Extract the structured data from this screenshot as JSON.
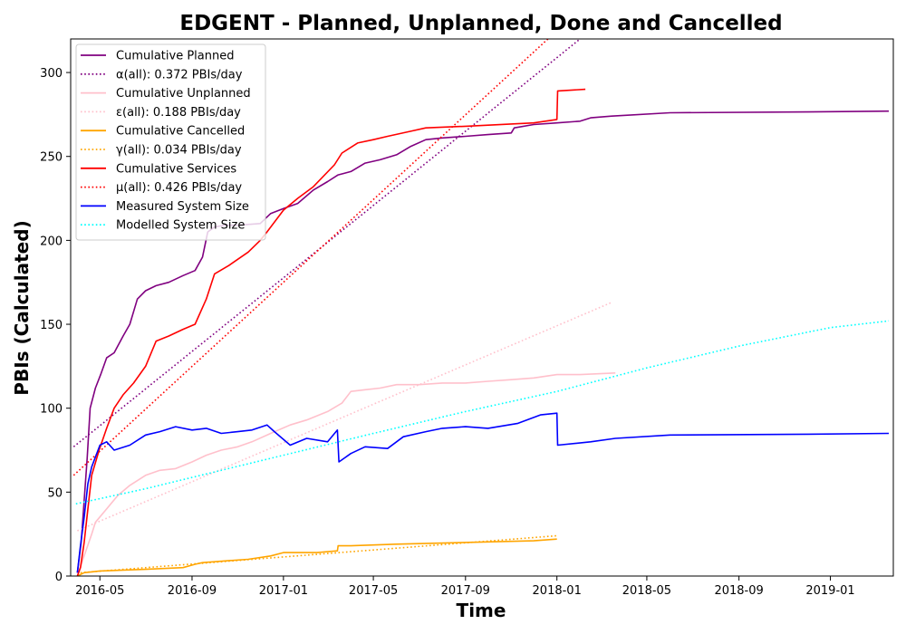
{
  "chart_data": {
    "type": "line",
    "title": "EDGENT - Planned, Unplanned, Done  and Cancelled",
    "xlabel": "Time",
    "ylabel": "PBIs (Calculated)",
    "xlim": [
      "2016-03-23",
      "2019-03-26"
    ],
    "ylim": [
      0,
      320
    ],
    "x_ticks": [
      "2016-05",
      "2016-09",
      "2017-01",
      "2017-05",
      "2017-09",
      "2018-01",
      "2018-05",
      "2018-09",
      "2019-01"
    ],
    "y_ticks": [
      0,
      50,
      100,
      150,
      200,
      250,
      300
    ],
    "grid": false,
    "legend_position": "top-left",
    "series": [
      {
        "name": "Cumulative Planned",
        "color": "#800080",
        "style": "solid",
        "points": [
          [
            "2016-04-01",
            2
          ],
          [
            "2016-04-06",
            20
          ],
          [
            "2016-04-10",
            45
          ],
          [
            "2016-04-14",
            70
          ],
          [
            "2016-04-18",
            100
          ],
          [
            "2016-04-25",
            112
          ],
          [
            "2016-05-02",
            120
          ],
          [
            "2016-05-10",
            130
          ],
          [
            "2016-05-20",
            133
          ],
          [
            "2016-06-01",
            143
          ],
          [
            "2016-06-10",
            150
          ],
          [
            "2016-06-20",
            165
          ],
          [
            "2016-07-01",
            170
          ],
          [
            "2016-07-15",
            173
          ],
          [
            "2016-08-01",
            175
          ],
          [
            "2016-08-20",
            179
          ],
          [
            "2016-09-05",
            182
          ],
          [
            "2016-09-15",
            190
          ],
          [
            "2016-09-22",
            205
          ],
          [
            "2016-10-01",
            208
          ],
          [
            "2016-10-15",
            209
          ],
          [
            "2016-11-01",
            209
          ],
          [
            "2016-12-01",
            210
          ],
          [
            "2016-12-15",
            216
          ],
          [
            "2017-01-01",
            219
          ],
          [
            "2017-01-20",
            222
          ],
          [
            "2017-02-10",
            230
          ],
          [
            "2017-03-01",
            235
          ],
          [
            "2017-03-15",
            239
          ],
          [
            "2017-04-01",
            241
          ],
          [
            "2017-04-20",
            246
          ],
          [
            "2017-05-10",
            248
          ],
          [
            "2017-06-01",
            251
          ],
          [
            "2017-06-20",
            256
          ],
          [
            "2017-07-10",
            260
          ],
          [
            "2017-08-01",
            261
          ],
          [
            "2017-09-01",
            262
          ],
          [
            "2017-10-01",
            263
          ],
          [
            "2017-11-01",
            264
          ],
          [
            "2017-11-05",
            267
          ],
          [
            "2017-12-01",
            269
          ],
          [
            "2018-01-01",
            270
          ],
          [
            "2018-02-01",
            271
          ],
          [
            "2018-02-15",
            273
          ],
          [
            "2018-03-15",
            274
          ],
          [
            "2018-06-01",
            276
          ],
          [
            "2018-12-01",
            276.5
          ],
          [
            "2019-03-20",
            277
          ]
        ]
      },
      {
        "name": "α(all): 0.372 PBIs/day",
        "color": "#800080",
        "style": "dotted",
        "points": [
          [
            "2016-03-27",
            77
          ],
          [
            "2018-02-01",
            320
          ]
        ]
      },
      {
        "name": "Cumulative Unplanned",
        "color": "#ffc0cb",
        "style": "solid",
        "points": [
          [
            "2016-04-01",
            0
          ],
          [
            "2016-04-10",
            12
          ],
          [
            "2016-04-20",
            25
          ],
          [
            "2016-04-25",
            32
          ],
          [
            "2016-05-10",
            40
          ],
          [
            "2016-05-25",
            48
          ],
          [
            "2016-06-10",
            54
          ],
          [
            "2016-07-01",
            60
          ],
          [
            "2016-07-20",
            63
          ],
          [
            "2016-08-10",
            64
          ],
          [
            "2016-09-01",
            68
          ],
          [
            "2016-09-20",
            72
          ],
          [
            "2016-10-10",
            75
          ],
          [
            "2016-11-01",
            77
          ],
          [
            "2016-11-20",
            80
          ],
          [
            "2016-12-15",
            85
          ],
          [
            "2017-01-10",
            90
          ],
          [
            "2017-02-01",
            93
          ],
          [
            "2017-03-01",
            98
          ],
          [
            "2017-03-20",
            103
          ],
          [
            "2017-04-01",
            110
          ],
          [
            "2017-04-20",
            111
          ],
          [
            "2017-05-10",
            112
          ],
          [
            "2017-06-01",
            114
          ],
          [
            "2017-07-01",
            114
          ],
          [
            "2017-08-01",
            115
          ],
          [
            "2017-09-01",
            115
          ],
          [
            "2017-10-01",
            116
          ],
          [
            "2017-11-01",
            117
          ],
          [
            "2017-12-01",
            118
          ],
          [
            "2018-01-01",
            120
          ],
          [
            "2018-02-01",
            120
          ],
          [
            "2018-03-20",
            121
          ]
        ]
      },
      {
        "name": "ε(all): 0.188 PBIs/day",
        "color": "#ffc0cb",
        "style": "dotted",
        "points": [
          [
            "2016-04-01",
            27
          ],
          [
            "2018-03-15",
            163
          ]
        ]
      },
      {
        "name": "Cumulative Cancelled",
        "color": "#ffa500",
        "style": "solid",
        "points": [
          [
            "2016-04-01",
            0
          ],
          [
            "2016-04-10",
            2
          ],
          [
            "2016-05-01",
            3
          ],
          [
            "2016-07-01",
            4
          ],
          [
            "2016-08-20",
            5
          ],
          [
            "2016-09-05",
            7
          ],
          [
            "2016-09-15",
            8
          ],
          [
            "2016-10-15",
            9
          ],
          [
            "2016-11-15",
            10
          ],
          [
            "2016-12-15",
            12
          ],
          [
            "2017-01-01",
            14
          ],
          [
            "2017-02-15",
            14
          ],
          [
            "2017-03-14",
            15
          ],
          [
            "2017-03-15",
            18
          ],
          [
            "2017-04-01",
            18
          ],
          [
            "2017-06-01",
            19
          ],
          [
            "2017-09-01",
            20
          ],
          [
            "2017-12-01",
            21
          ],
          [
            "2018-01-01",
            22
          ]
        ]
      },
      {
        "name": "γ(all): 0.034 PBIs/day",
        "color": "#ffa500",
        "style": "dotted",
        "points": [
          [
            "2016-04-05",
            2
          ],
          [
            "2018-01-01",
            24
          ]
        ]
      },
      {
        "name": "Cumulative Services",
        "color": "#ff0000",
        "style": "solid",
        "points": [
          [
            "2016-04-01",
            0
          ],
          [
            "2016-04-05",
            5
          ],
          [
            "2016-04-10",
            20
          ],
          [
            "2016-04-15",
            40
          ],
          [
            "2016-04-20",
            60
          ],
          [
            "2016-04-30",
            75
          ],
          [
            "2016-05-10",
            88
          ],
          [
            "2016-05-20",
            100
          ],
          [
            "2016-06-01",
            108
          ],
          [
            "2016-06-15",
            115
          ],
          [
            "2016-07-01",
            125
          ],
          [
            "2016-07-15",
            140
          ],
          [
            "2016-08-01",
            143
          ],
          [
            "2016-08-20",
            147
          ],
          [
            "2016-09-05",
            150
          ],
          [
            "2016-09-20",
            165
          ],
          [
            "2016-10-01",
            180
          ],
          [
            "2016-10-20",
            185
          ],
          [
            "2016-11-15",
            193
          ],
          [
            "2016-12-01",
            200
          ],
          [
            "2016-12-10",
            205
          ],
          [
            "2017-01-01",
            218
          ],
          [
            "2017-01-20",
            225
          ],
          [
            "2017-02-10",
            232
          ],
          [
            "2017-03-10",
            245
          ],
          [
            "2017-03-20",
            252
          ],
          [
            "2017-04-10",
            258
          ],
          [
            "2017-05-01",
            260
          ],
          [
            "2017-05-20",
            262
          ],
          [
            "2017-06-20",
            265
          ],
          [
            "2017-07-10",
            267
          ],
          [
            "2017-09-01",
            268
          ],
          [
            "2017-12-01",
            270
          ],
          [
            "2018-01-01",
            272
          ],
          [
            "2018-01-02",
            289
          ],
          [
            "2018-02-08",
            290
          ]
        ]
      },
      {
        "name": "μ(all): 0.426 PBIs/day",
        "color": "#ff0000",
        "style": "dotted",
        "points": [
          [
            "2016-03-27",
            60
          ],
          [
            "2017-12-20",
            320
          ]
        ]
      },
      {
        "name": "Measured System Size",
        "color": "#0000ff",
        "style": "solid",
        "points": [
          [
            "2016-04-01",
            2
          ],
          [
            "2016-04-05",
            18
          ],
          [
            "2016-04-10",
            35
          ],
          [
            "2016-04-15",
            55
          ],
          [
            "2016-04-20",
            65
          ],
          [
            "2016-05-01",
            78
          ],
          [
            "2016-05-10",
            80
          ],
          [
            "2016-05-20",
            75
          ],
          [
            "2016-06-10",
            78
          ],
          [
            "2016-07-01",
            84
          ],
          [
            "2016-07-20",
            86
          ],
          [
            "2016-08-10",
            89
          ],
          [
            "2016-09-01",
            87
          ],
          [
            "2016-09-20",
            88
          ],
          [
            "2016-10-10",
            85
          ],
          [
            "2016-11-01",
            86
          ],
          [
            "2016-11-20",
            87
          ],
          [
            "2016-12-10",
            90
          ],
          [
            "2016-12-20",
            86
          ],
          [
            "2017-01-10",
            78
          ],
          [
            "2017-02-01",
            82
          ],
          [
            "2017-03-01",
            80
          ],
          [
            "2017-03-14",
            87
          ],
          [
            "2017-03-16",
            68
          ],
          [
            "2017-04-01",
            73
          ],
          [
            "2017-04-20",
            77
          ],
          [
            "2017-05-20",
            76
          ],
          [
            "2017-06-10",
            83
          ],
          [
            "2017-07-10",
            86
          ],
          [
            "2017-08-01",
            88
          ],
          [
            "2017-09-01",
            89
          ],
          [
            "2017-10-01",
            88
          ],
          [
            "2017-11-10",
            91
          ],
          [
            "2017-12-10",
            96
          ],
          [
            "2018-01-01",
            97
          ],
          [
            "2018-01-02",
            78
          ],
          [
            "2018-02-15",
            80
          ],
          [
            "2018-03-20",
            82
          ],
          [
            "2018-06-01",
            84
          ],
          [
            "2018-12-01",
            84.5
          ],
          [
            "2019-03-20",
            85
          ]
        ]
      },
      {
        "name": "Modelled System Size",
        "color": "#00ffff",
        "style": "dotted",
        "points": [
          [
            "2016-03-30",
            43
          ],
          [
            "2016-07-01",
            52
          ],
          [
            "2016-10-01",
            62
          ],
          [
            "2017-01-01",
            72
          ],
          [
            "2017-05-01",
            85
          ],
          [
            "2017-09-01",
            98
          ],
          [
            "2018-01-01",
            110
          ],
          [
            "2018-05-01",
            124
          ],
          [
            "2018-09-01",
            137
          ],
          [
            "2019-01-01",
            148
          ],
          [
            "2019-03-20",
            152
          ]
        ]
      }
    ]
  }
}
